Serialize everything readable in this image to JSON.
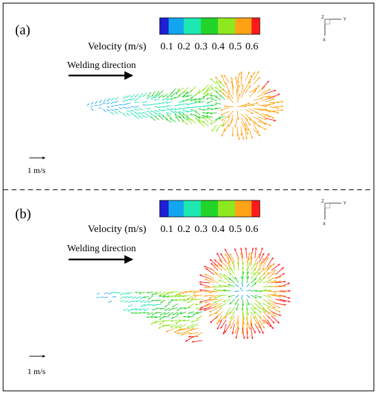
{
  "colors": {
    "scale": [
      "#1f1fd6",
      "#12a6f0",
      "#1ee8b2",
      "#22d42a",
      "#8ee81e",
      "#ffa316",
      "#ff1a1a"
    ],
    "frame": "#000000"
  },
  "panels": [
    {
      "label": "(a)",
      "legend_title": "Velocity (m/s)",
      "ticks": [
        "0.1",
        "0.2",
        "0.3",
        "0.4",
        "0.5",
        "0.6"
      ],
      "direction_label": "Welding direction",
      "reference_label": "1 m/s",
      "triad": [
        "Z",
        "Y",
        "X"
      ],
      "shape": "elongated"
    },
    {
      "label": "(b)",
      "legend_title": "Velocity (m/s)",
      "ticks": [
        "0.1",
        "0.2",
        "0.3",
        "0.4",
        "0.5",
        "0.6"
      ],
      "direction_label": "Welding direction",
      "reference_label": "1 m/s",
      "triad": [
        "Z",
        "Y",
        "X"
      ],
      "shape": "keyhole"
    }
  ]
}
